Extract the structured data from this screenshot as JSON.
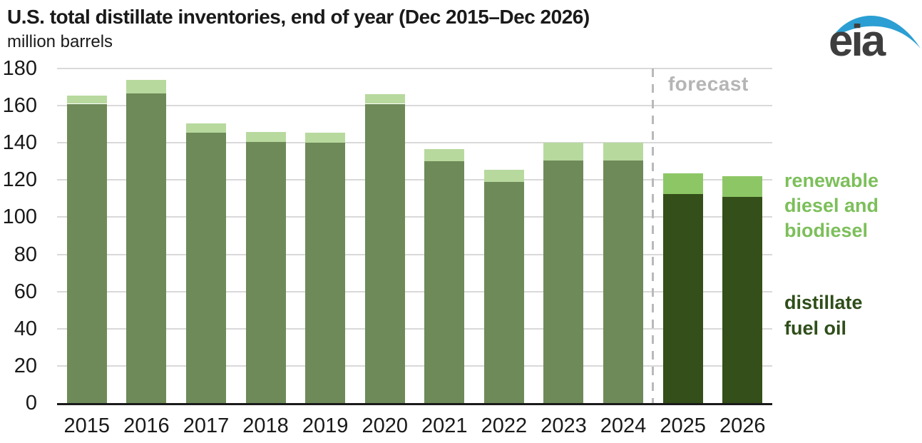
{
  "header": {
    "title": "U.S. total distillate inventories, end of year (Dec 2015–Dec 2026)",
    "subtitle": "million barrels"
  },
  "logo": {
    "text": "eia",
    "swoosh_color": "#2b9fd3",
    "text_color": "#3e3e3e"
  },
  "chart_data": {
    "type": "bar",
    "stacked": true,
    "title": "U.S. total distillate inventories, end of year (Dec 2015–Dec 2026)",
    "ylabel": "million barrels",
    "categories": [
      "2015",
      "2016",
      "2017",
      "2018",
      "2019",
      "2020",
      "2021",
      "2022",
      "2023",
      "2024",
      "2025",
      "2026"
    ],
    "series": [
      {
        "name": "distillate fuel oil",
        "values": [
          161,
          166.5,
          145.5,
          140.5,
          140,
          161,
          130,
          119,
          130.5,
          130.5,
          112.5,
          111
        ],
        "color": "#6e8a58",
        "forecast_color": "#344f19"
      },
      {
        "name": "renewable diesel and biodiesel",
        "values": [
          4.5,
          7.5,
          5,
          5.5,
          5.5,
          5,
          6.5,
          6.5,
          9.5,
          9.5,
          11,
          11
        ],
        "color": "#b7d99e",
        "forecast_color": "#8dc765"
      }
    ],
    "totals": [
      165.5,
      174,
      150.5,
      146,
      145.5,
      166,
      136.5,
      125.5,
      140,
      140,
      123.5,
      122
    ],
    "forecast_start_index": 10,
    "forecast_label": "forecast",
    "forecast_line_color": "#b9b9b9",
    "forecast_label_color": "#b5b5b5",
    "ylim": [
      0,
      180
    ],
    "ytick_step": 20,
    "grid": true,
    "legend_position": "right"
  },
  "legend": {
    "renewable": "renewable diesel and biodiesel",
    "renewable_color": "#7cbf5a",
    "distillate": "distillate fuel oil",
    "distillate_color": "#2f4e1a"
  }
}
